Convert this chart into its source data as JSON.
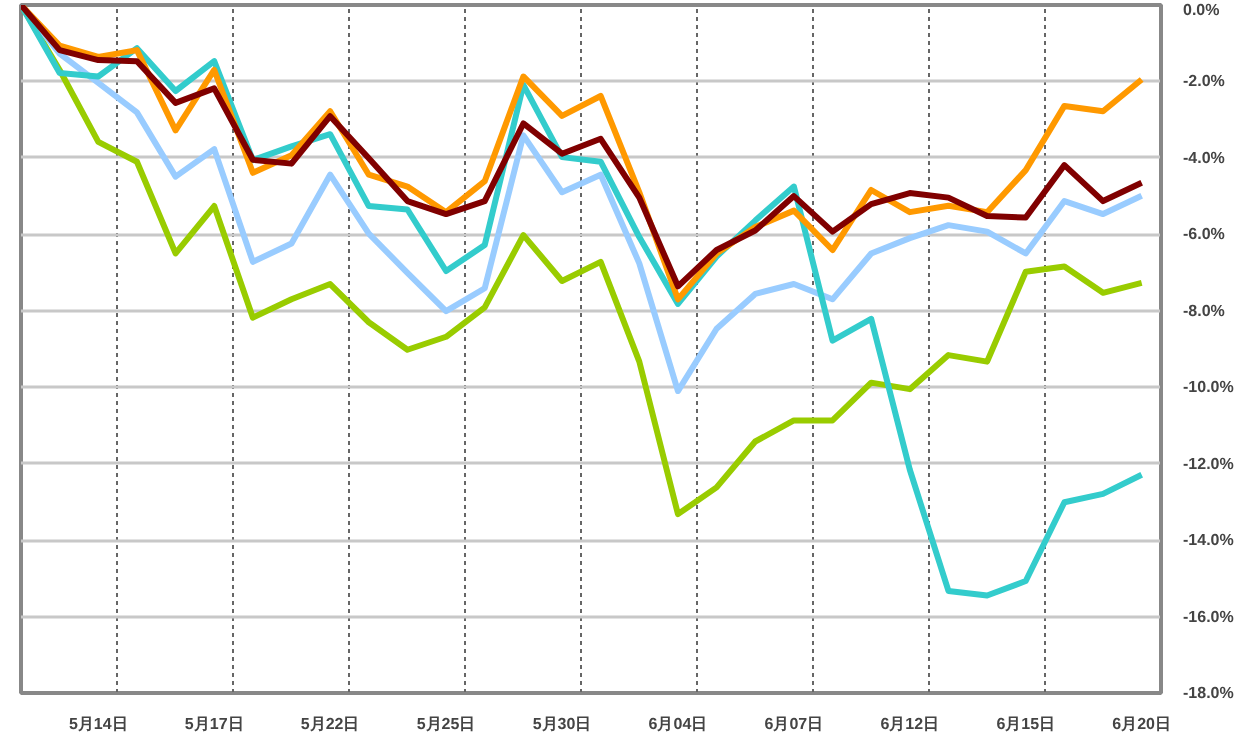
{
  "chart_data": {
    "type": "line",
    "categories": [
      null,
      null,
      "5月14日",
      null,
      null,
      "5月17日",
      null,
      null,
      "5月22日",
      null,
      null,
      "5月25日",
      null,
      null,
      "5月30日",
      null,
      null,
      "6月04日",
      null,
      null,
      "6月07日",
      null,
      null,
      "6月12日",
      null,
      null,
      "6月15日",
      null,
      null,
      "6月20日"
    ],
    "series": [
      {
        "color": "#99cc00",
        "values": [
          0,
          -1.7,
          -3.58,
          -4.1,
          -6.5,
          -5.26,
          -8.18,
          -7.7,
          -7.3,
          -8.3,
          -9.02,
          -8.68,
          -7.91,
          -6.02,
          -7.22,
          -6.72,
          -9.33,
          -13.32,
          -12.62,
          -11.42,
          -10.87,
          -10.87,
          -9.88,
          -10.05,
          -9.16,
          -9.33,
          -6.98,
          -6.84,
          -7.53,
          -7.27
        ]
      },
      {
        "color": "#99ccff",
        "values": [
          0,
          -1.27,
          -2.04,
          -2.81,
          -4.49,
          -3.77,
          -6.72,
          -6.24,
          -4.44,
          -5.98,
          -7.01,
          -8.01,
          -7.41,
          -3.41,
          -4.9,
          -4.44,
          -6.76,
          -10.1,
          -8.47,
          -7.56,
          -7.3,
          -7.7,
          -6.5,
          -6.1,
          -5.76,
          -5.93,
          -6.5,
          -5.13,
          -5.47,
          -4.99
        ]
      },
      {
        "color": "#33cccc",
        "values": [
          0,
          -1.78,
          -1.87,
          -1.13,
          -2.25,
          -1.47,
          -4.06,
          -3.7,
          -3.38,
          -5.26,
          -5.35,
          -6.96,
          -6.28,
          -2.09,
          -3.98,
          -4.1,
          -6.07,
          -7.82,
          -6.58,
          -5.64,
          -4.75,
          -8.78,
          -8.21,
          -12.16,
          -15.33,
          -15.45,
          -15.07,
          -13.01,
          -12.79,
          -12.29
        ]
      },
      {
        "color": "#ff9900",
        "values": [
          0,
          -1.06,
          -1.36,
          -1.18,
          -3.28,
          -1.7,
          -4.39,
          -3.93,
          -2.78,
          -4.44,
          -4.75,
          -5.42,
          -4.61,
          -1.87,
          -2.9,
          -2.38,
          -4.9,
          -7.7,
          -6.5,
          -5.81,
          -5.38,
          -6.41,
          -4.84,
          -5.42,
          -5.25,
          -5.42,
          -4.32,
          -2.64,
          -2.78,
          -1.95
        ]
      },
      {
        "color": "#800000",
        "values": [
          0,
          -1.18,
          -1.44,
          -1.47,
          -2.56,
          -2.18,
          -4.05,
          -4.15,
          -2.91,
          -4.01,
          -5.13,
          -5.47,
          -5.13,
          -3.1,
          -3.89,
          -3.5,
          -5.04,
          -7.36,
          -6.41,
          -5.9,
          -5.0,
          -5.93,
          -5.21,
          -4.92,
          -5.04,
          -5.52,
          -5.56,
          -4.19,
          -5.13,
          -4.65
        ]
      }
    ],
    "ylim": [
      -18,
      0
    ],
    "yticks": [
      {
        "value": 0,
        "label": "0.0%"
      },
      {
        "value": -2,
        "label": "-2.0%"
      },
      {
        "value": -4,
        "label": "-4.0%"
      },
      {
        "value": -6,
        "label": "-6.0%"
      },
      {
        "value": -8,
        "label": "-8.0%"
      },
      {
        "value": -10,
        "label": "-10.0%"
      },
      {
        "value": -12,
        "label": "-12.0%"
      },
      {
        "value": -14,
        "label": "-14.0%"
      },
      {
        "value": -16,
        "label": "-16.0%"
      },
      {
        "value": -18,
        "label": "-18.0%"
      }
    ],
    "grid": true,
    "marker": "none",
    "line_style": "solid"
  }
}
